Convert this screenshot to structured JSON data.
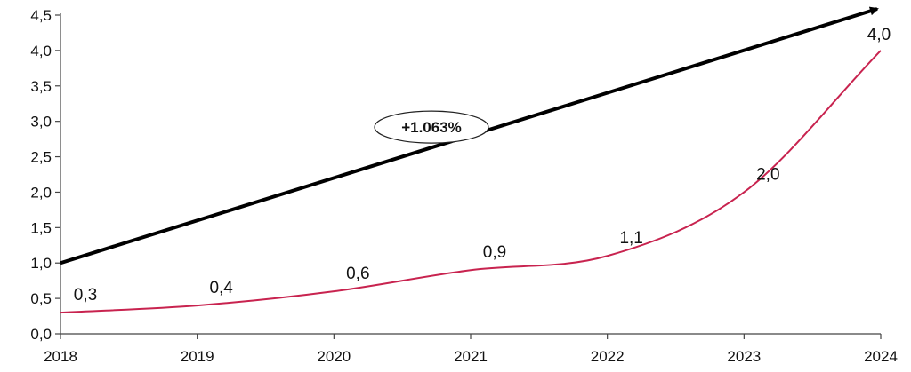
{
  "chart_data": {
    "type": "line",
    "x": [
      "2018",
      "2019",
      "2020",
      "2021",
      "2022",
      "2023",
      "2024"
    ],
    "series": [
      {
        "values": [
          0.3,
          0.4,
          0.6,
          0.9,
          1.1,
          2.0,
          4.0
        ],
        "labels": [
          "0,3",
          "0,4",
          "0,6",
          "0,9",
          "1,1",
          "2,0",
          "4,0"
        ],
        "color": "#c8234f"
      }
    ],
    "trend_arrow": {
      "from": {
        "x": "2018",
        "y": 1.0
      },
      "to": {
        "x": "2024",
        "y": 4.6
      },
      "label": "+1.063%",
      "color": "#000000"
    },
    "ylim": [
      0,
      4.5
    ],
    "yticks": [
      0,
      0.5,
      1.0,
      1.5,
      2.0,
      2.5,
      3.0,
      3.5,
      4.0,
      4.5
    ],
    "ytick_labels": [
      "0,0",
      "0,5",
      "1,0",
      "1,5",
      "2,0",
      "2,5",
      "3,0",
      "3,5",
      "4,0",
      "4,5"
    ],
    "xtick_labels": [
      "2018",
      "2019",
      "2020",
      "2021",
      "2022",
      "2023",
      "2024"
    ],
    "grid": false,
    "title": "",
    "xlabel": "",
    "ylabel": ""
  }
}
